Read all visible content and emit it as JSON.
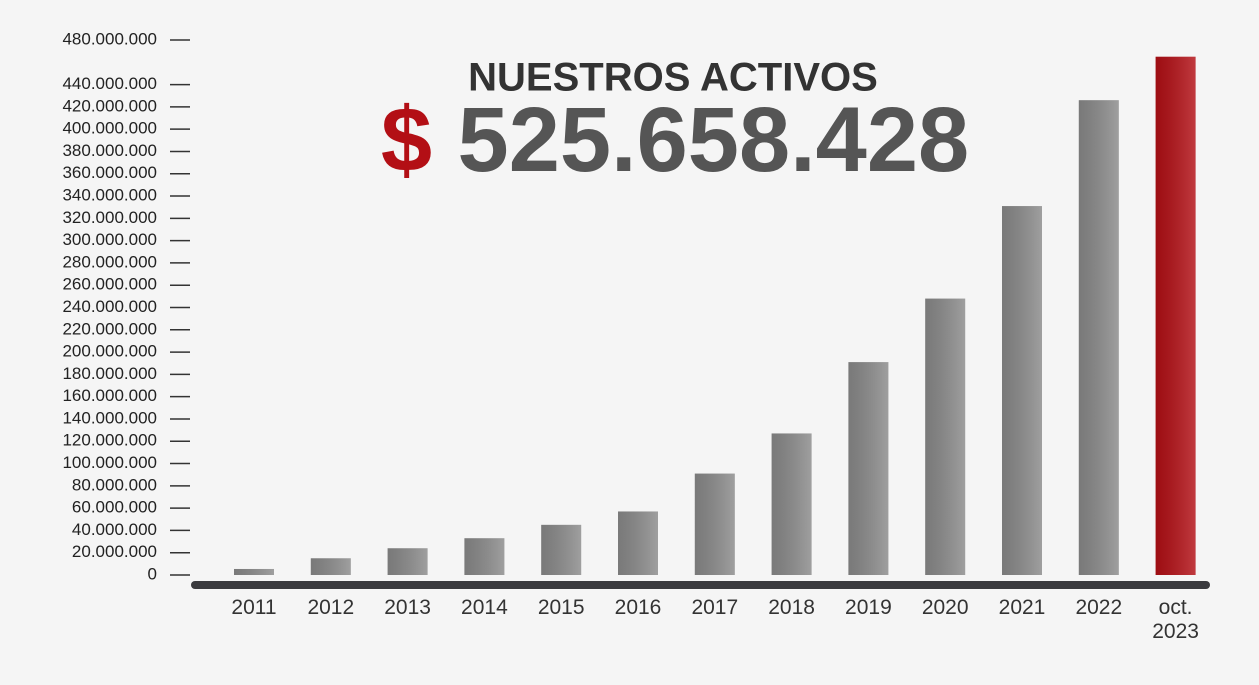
{
  "chart_data": {
    "type": "bar",
    "title": "NUESTROS ACTIVOS",
    "currency": "$",
    "total": "525.658.428",
    "categories": [
      "2011",
      "2012",
      "2013",
      "2014",
      "2015",
      "2016",
      "2017",
      "2018",
      "2019",
      "2020",
      "2021",
      "2022",
      "oct. 2023"
    ],
    "values": [
      5400000,
      15000000,
      24000000,
      33000000,
      45000000,
      57000000,
      91000000,
      127000000,
      191000000,
      248000000,
      331000000,
      426000000,
      465000000
    ],
    "colors": [
      "#8a8a8a",
      "#8a8a8a",
      "#8a8a8a",
      "#8a8a8a",
      "#8a8a8a",
      "#8a8a8a",
      "#8a8a8a",
      "#8a8a8a",
      "#8a8a8a",
      "#8a8a8a",
      "#8a8a8a",
      "#8a8a8a",
      "#b30f15"
    ],
    "ylim": [
      0,
      480000000
    ],
    "yticks": [
      0,
      {
        "value": 20000000,
        "label": "20.000.000"
      },
      {
        "value": 40000000,
        "label": "40.000.000"
      },
      {
        "value": 60000000,
        "label": "60.000.000"
      },
      {
        "value": 80000000,
        "label": "80.000.000"
      },
      {
        "value": 100000000,
        "label": "100.000.000"
      },
      {
        "value": 120000000,
        "label": "120.000.000"
      },
      {
        "value": 140000000,
        "label": "140.000.000"
      },
      {
        "value": 160000000,
        "label": "160.000.000"
      },
      {
        "value": 180000000,
        "label": "180.000.000"
      },
      {
        "value": 200000000,
        "label": "200.000.000"
      },
      {
        "value": 220000000,
        "label": "220.000.000"
      },
      {
        "value": 240000000,
        "label": "240.000.000"
      },
      {
        "value": 260000000,
        "label": "260.000.000"
      },
      {
        "value": 280000000,
        "label": "280.000.000"
      },
      {
        "value": 300000000,
        "label": "300.000.000"
      },
      {
        "value": 320000000,
        "label": "320.000.000"
      },
      {
        "value": 340000000,
        "label": "340.000.000"
      },
      {
        "value": 360000000,
        "label": "360.000.000"
      },
      {
        "value": 380000000,
        "label": "380.000.000"
      },
      {
        "value": 400000000,
        "label": "400.000.000"
      },
      {
        "value": 420000000,
        "label": "420.000.000"
      },
      {
        "value": 440000000,
        "label": "440.000.000"
      },
      {
        "value": 480000000,
        "label": "480.000.000"
      }
    ],
    "grid": false
  }
}
